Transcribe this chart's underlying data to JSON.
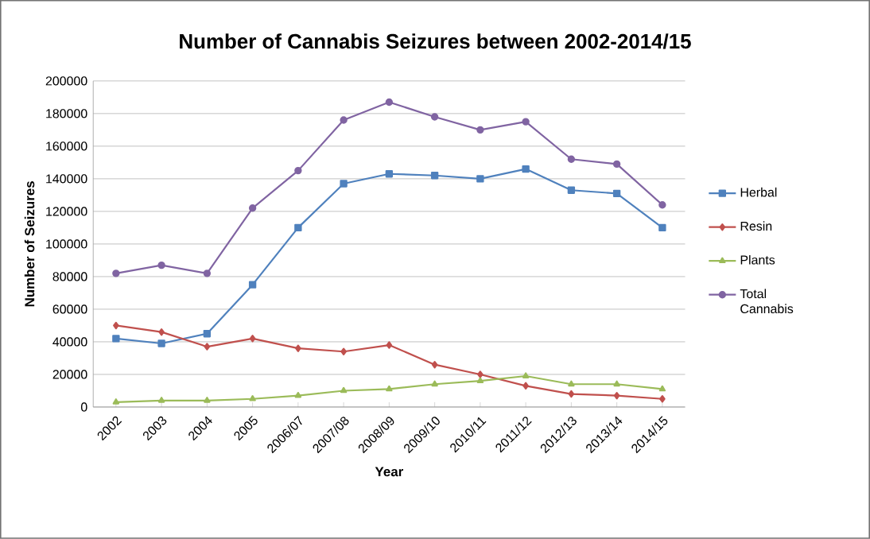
{
  "chart_data": {
    "type": "line",
    "title": "Number of Cannabis Seizures between 2002-2014/15",
    "xlabel": "Year",
    "ylabel": "Number of Seizures",
    "categories": [
      "2002",
      "2003",
      "2004",
      "2005",
      "2006/07",
      "2007/08",
      "2008/09",
      "2009/10",
      "2010/11",
      "2011/12",
      "2012/13",
      "2013/14",
      "2014/15"
    ],
    "series": [
      {
        "name": "Herbal",
        "color": "#4f81bd",
        "marker": "square",
        "values": [
          42000,
          39000,
          45000,
          75000,
          110000,
          137000,
          143000,
          142000,
          140000,
          146000,
          133000,
          131000,
          110000
        ]
      },
      {
        "name": "Resin",
        "color": "#c0504d",
        "marker": "diamond",
        "values": [
          50000,
          46000,
          37000,
          42000,
          36000,
          34000,
          38000,
          26000,
          20000,
          13000,
          8000,
          7000,
          5000
        ]
      },
      {
        "name": "Plants",
        "color": "#9bbb59",
        "marker": "triangle",
        "values": [
          3000,
          4000,
          4000,
          5000,
          7000,
          10000,
          11000,
          14000,
          16000,
          19000,
          14000,
          14000,
          11000
        ]
      },
      {
        "name": "Total Cannabis",
        "color": "#8064a2",
        "marker": "circle",
        "values": [
          82000,
          87000,
          82000,
          122000,
          145000,
          176000,
          187000,
          178000,
          170000,
          175000,
          152000,
          149000,
          124000
        ]
      }
    ],
    "ylim": [
      0,
      200000
    ],
    "yticks": [
      0,
      20000,
      40000,
      60000,
      80000,
      100000,
      120000,
      140000,
      160000,
      180000,
      200000
    ],
    "grid": "y",
    "legend": "right",
    "line_style": "solid"
  }
}
